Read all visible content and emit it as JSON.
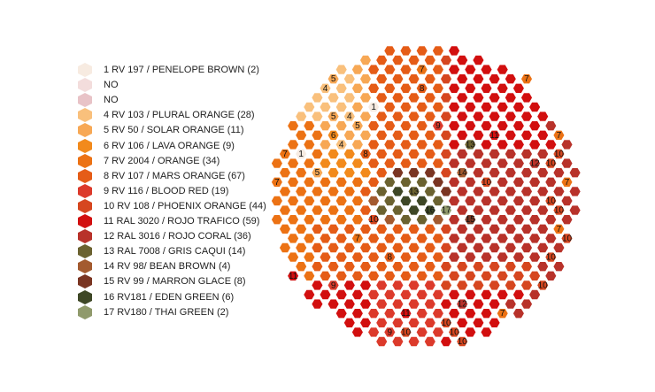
{
  "legend": [
    {
      "code": "1",
      "label": "1 RV 197 / PENELOPE BROWN (2)",
      "color": "#f7ebe1"
    },
    {
      "code": "NO1",
      "label": "NO",
      "color": "#f3dddc"
    },
    {
      "code": "NO2",
      "label": "NO",
      "color": "#e8c3c7"
    },
    {
      "code": "4",
      "label": "4 RV 103 / PLURAL ORANGE (28)",
      "color": "#f9c07c"
    },
    {
      "code": "5",
      "label": "5 RV 50 / SOLAR ORANGE (11)",
      "color": "#f7a855"
    },
    {
      "code": "6",
      "label": "6 RV 106 / LAVA ORANGE (9)",
      "color": "#f28a1c"
    },
    {
      "code": "7",
      "label": "7 RV 2004 / ORANGE (34)",
      "color": "#ec7214"
    },
    {
      "code": "8",
      "label": "8 RV 107 / MARS ORANGE (67)",
      "color": "#e55c17"
    },
    {
      "code": "9",
      "label": "9 RV 116 / BLOOD RED (19)",
      "color": "#dc3a2b"
    },
    {
      "code": "10",
      "label": "10 RV 108 / PHOENIX ORANGE (44)",
      "color": "#d6461f"
    },
    {
      "code": "11",
      "label": "11 RAL 3020 / ROJO TRAFICO (59)",
      "color": "#d20f0f"
    },
    {
      "code": "12",
      "label": "12 RAL 3016 / ROJO CORAL (36)",
      "color": "#b8322a"
    },
    {
      "code": "13",
      "label": "13 RAL 7008 / GRIS CAQUI (14)",
      "color": "#6b6230"
    },
    {
      "code": "14",
      "label": "14 RV 98/ BEAN BROWN (4)",
      "color": "#a35a2f"
    },
    {
      "code": "15",
      "label": "15 RV 99 / MARRON GLACE (8)",
      "color": "#7a3522"
    },
    {
      "code": "16",
      "label": "16 RV181 / EDEN GREEN (6)",
      "color": "#3e4726"
    },
    {
      "code": "17",
      "label": "17 RV180 / THAI GREEN (2)",
      "color": "#909a6c"
    }
  ],
  "grid_labels": [
    {
      "code": "7",
      "col": 8,
      "row": 1
    },
    {
      "code": "7",
      "col": 15,
      "row": 2
    },
    {
      "code": "4",
      "col": 2,
      "row": 3
    },
    {
      "code": "5",
      "col": 3,
      "row": 2
    },
    {
      "code": "8",
      "col": 8,
      "row": 3
    },
    {
      "code": "1",
      "col": 5,
      "row": 5
    },
    {
      "code": "5",
      "col": 3,
      "row": 6
    },
    {
      "code": "4",
      "col": 4,
      "row": 6
    },
    {
      "code": "5",
      "col": 4,
      "row": 7
    },
    {
      "code": "9",
      "col": 9,
      "row": 7
    },
    {
      "code": "6",
      "col": 3,
      "row": 8
    },
    {
      "code": "4",
      "col": 3,
      "row": 9
    },
    {
      "code": "11",
      "col": 13,
      "row": 8
    },
    {
      "code": "13",
      "col": 11,
      "row": 9
    },
    {
      "code": "7",
      "col": 17,
      "row": 8
    },
    {
      "code": "1",
      "col": 1,
      "row": 10
    },
    {
      "code": "7",
      "col": 0,
      "row": 10
    },
    {
      "code": "8",
      "col": 5,
      "row": 10
    },
    {
      "code": "12",
      "col": 15,
      "row": 11
    },
    {
      "code": "10",
      "col": 16,
      "row": 11
    },
    {
      "code": "10",
      "col": 17,
      "row": 10
    },
    {
      "code": "5",
      "col": 2,
      "row": 12
    },
    {
      "code": "14",
      "col": 11,
      "row": 12
    },
    {
      "code": "7",
      "col": 17,
      "row": 13
    },
    {
      "code": "7",
      "col": -1,
      "row": 13
    },
    {
      "code": "10",
      "col": 12,
      "row": 13
    },
    {
      "code": "13",
      "col": 8,
      "row": 14
    },
    {
      "code": "10",
      "col": 16,
      "row": 15
    },
    {
      "code": "16",
      "col": 9,
      "row": 16
    },
    {
      "code": "17",
      "col": 10,
      "row": 16
    },
    {
      "code": "10",
      "col": 5,
      "row": 17
    },
    {
      "code": "15",
      "col": 11,
      "row": 17
    },
    {
      "code": "10",
      "col": 17,
      "row": 16
    },
    {
      "code": "7",
      "col": 17,
      "row": 18
    },
    {
      "code": "7",
      "col": 4,
      "row": 19
    },
    {
      "code": "10",
      "col": 17,
      "row": 19
    },
    {
      "code": "8",
      "col": 6,
      "row": 21
    },
    {
      "code": "10",
      "col": 16,
      "row": 21
    },
    {
      "code": "11",
      "col": 0,
      "row": 23
    },
    {
      "code": "9",
      "col": 3,
      "row": 24
    },
    {
      "code": "10",
      "col": 16,
      "row": 24
    },
    {
      "code": "12",
      "col": 11,
      "row": 26
    },
    {
      "code": "7",
      "col": 13,
      "row": 27
    },
    {
      "code": "11",
      "col": 7,
      "row": 27
    },
    {
      "code": "10",
      "col": 10,
      "row": 28
    },
    {
      "code": "9",
      "col": 6,
      "row": 29
    },
    {
      "code": "10",
      "col": 7,
      "row": 29
    },
    {
      "code": "10",
      "col": 10,
      "row": 29
    },
    {
      "code": "10",
      "col": 11,
      "row": 30
    }
  ]
}
